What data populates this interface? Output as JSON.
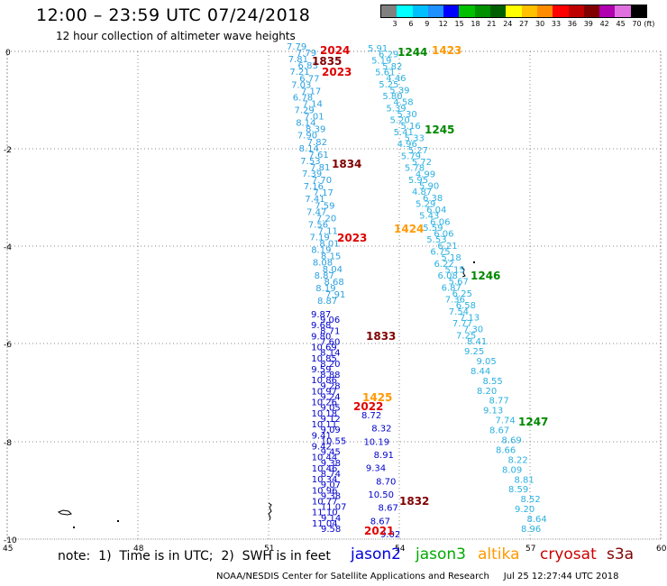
{
  "header": {
    "title": "12:00 – 23:59 UTC 07/24/2018",
    "subtitle": "12 hour collection of altimeter wave heights"
  },
  "legend": {
    "colors": [
      "#808080",
      "#00ffff",
      "#00bfff",
      "#1e90ff",
      "#0000ff",
      "#00c000",
      "#009000",
      "#006000",
      "#ffff00",
      "#ffc000",
      "#ff8c00",
      "#ff0000",
      "#c00000",
      "#800000",
      "#b000b0",
      "#e070e0",
      "#000000"
    ],
    "labels": [
      "3",
      "6",
      "9",
      "12",
      "15",
      "18",
      "21",
      "24",
      "27",
      "30",
      "33",
      "36",
      "39",
      "42",
      "45",
      "70",
      "(ft)"
    ]
  },
  "axes": {
    "y_ticks": [
      "0",
      "-2",
      "-4",
      "-6",
      "-8",
      "-10"
    ],
    "x_ticks": [
      "45",
      "48",
      "51",
      "54",
      "57",
      "60"
    ]
  },
  "passes": [
    {
      "name": "A",
      "color": "#2aa0e0",
      "times": [],
      "values": [
        "7.79",
        "7.79",
        "7.81",
        "6.83",
        "7.21",
        "6.77",
        "7.03",
        "7.17",
        "6.78",
        "7.14",
        "7.29",
        "7.01",
        "8.14",
        "8.39",
        "7.90",
        "7.82",
        "8.14",
        "7.61",
        "7.53",
        "7.81",
        "7.39",
        "7.70",
        "7.16",
        "7.17",
        "7.41",
        "7.59",
        "7.47",
        "7.20",
        "7.56",
        "7.11",
        "7.19",
        "8.01",
        "8.19",
        "8.15",
        "8.08",
        "8.04",
        "8.87",
        "8.68",
        "8.19",
        "7.91",
        "8.87"
      ]
    },
    {
      "name": "B",
      "color": "#0000cc",
      "times": [],
      "values": [
        "9.87",
        "9.06",
        "9.68",
        "8.71",
        "9.80",
        "7.60",
        "10.69",
        "8.14",
        "10.85",
        "8.20",
        "9.59",
        "8.88",
        "10.86",
        "9.28",
        "10.97",
        "9.24",
        "10.26",
        "9.05",
        "10.18",
        "9.12",
        "10.11",
        "9.09",
        "9.41",
        "10.55",
        "9.42",
        "9.45",
        "10.44",
        "9.38",
        "10.46",
        "8.74",
        "10.34",
        "9.07",
        "10.96",
        "9.38",
        "10.77",
        "11.07",
        "11.10",
        "9.14",
        "11.04",
        "9.58"
      ]
    },
    {
      "name": "C",
      "color": "#2ab0e0",
      "times": [],
      "values": [
        "5.91",
        "6.29",
        "5.19",
        "5.82",
        "5.61",
        "4.46",
        "5.25",
        "5.39",
        "5.80",
        "4.58",
        "5.39",
        "5.30",
        "5.20",
        "5.16",
        "5.41",
        "5.33",
        "4.96",
        "5.27",
        "5.79",
        "5.72",
        "5.78",
        "4.99",
        "5.95",
        "5.90",
        "4.87",
        "6.38",
        "5.29",
        "6.04",
        "5.43",
        "6.06",
        "5.59",
        "6.06",
        "5.53",
        "6.21",
        "6.75",
        "5.18",
        "6.22",
        "5.15",
        "6.08",
        "5.67",
        "6.87",
        "6.25",
        "7.36",
        "6.58",
        "7.54",
        "7.13",
        "7.77",
        "7.30",
        "7.25",
        "8.41"
      ]
    },
    {
      "name": "D",
      "color": "#0000cc",
      "times": [],
      "values": [
        "8.72",
        "8.32",
        "10.19",
        "8.91",
        "9.34",
        "8.70",
        "10.50",
        "8.67",
        "8.67",
        "9.02"
      ]
    },
    {
      "name": "E",
      "color": "#2ab0e0",
      "times": [],
      "values": [
        "9.25",
        "9.05",
        "8.44",
        "8.55",
        "8.20",
        "8.77",
        "9.13",
        "7.74",
        "8.67",
        "8.69",
        "8.66",
        "8.22",
        "8.09",
        "8.81",
        "8.59",
        "8.52",
        "9.20",
        "8.64",
        "8.96"
      ]
    }
  ],
  "time_labels": [
    {
      "text": "2024",
      "color": "#e00000"
    },
    {
      "text": "1835",
      "color": "#800000"
    },
    {
      "text": "2023",
      "color": "#e00000"
    },
    {
      "text": "1834",
      "color": "#800000"
    },
    {
      "text": "2023",
      "color": "#e00000"
    },
    {
      "text": "1833",
      "color": "#800000"
    },
    {
      "text": "1425",
      "color": "#ff9900"
    },
    {
      "text": "2022",
      "color": "#e00000"
    },
    {
      "text": "1832",
      "color": "#800000"
    },
    {
      "text": "2021",
      "color": "#e00000"
    },
    {
      "text": "1244",
      "color": "#008800"
    },
    {
      "text": "1423",
      "color": "#ff9900"
    },
    {
      "text": "1245",
      "color": "#008800"
    },
    {
      "text": "1424",
      "color": "#ff9900"
    },
    {
      "text": "1246",
      "color": "#008800"
    },
    {
      "text": "1247",
      "color": "#008800"
    }
  ],
  "notes": {
    "note_text": "note:  1)  Time is in UTC;  2)  SWH is in feet",
    "satellites": [
      {
        "name": "jason2",
        "color": "#0000dd"
      },
      {
        "name": "jason3",
        "color": "#00aa00"
      },
      {
        "name": "altika",
        "color": "#ff9900"
      },
      {
        "name": "cryosat",
        "color": "#cc0000"
      },
      {
        "name": "s3a",
        "color": "#800000"
      }
    ]
  },
  "footer": {
    "left": "NOAA/NESDIS Center for Satellite Applications and Research",
    "right": "Jul 25 12:27:44 UTC 2018"
  }
}
